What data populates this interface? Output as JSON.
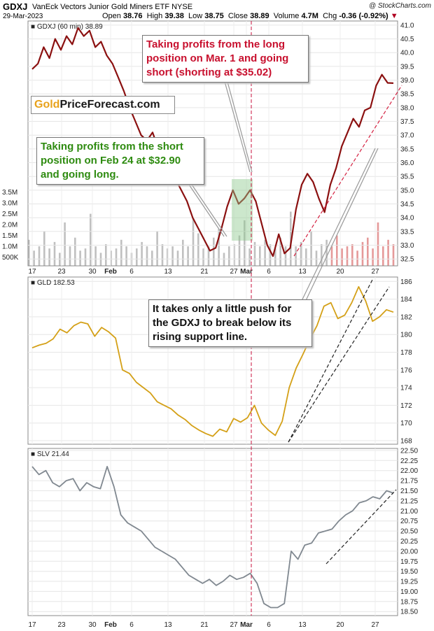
{
  "header": {
    "symbol": "GDXJ",
    "name": "VanEck Vectors Junior Gold Miners ETF",
    "exchange": "NYSE",
    "watermark": "@ StockCharts.com",
    "date": "29-Mar-2023",
    "open_label": "Open",
    "open": "38.76",
    "high_label": "High",
    "high": "39.38",
    "low_label": "Low",
    "low": "38.75",
    "close_label": "Close",
    "close": "38.89",
    "volume_label": "Volume",
    "volume": "4.7M",
    "chg_label": "Chg",
    "chg": "-0.36 (-0.92%)"
  },
  "logo": {
    "gold": "Gold",
    "rest": "PriceForecast.com"
  },
  "annotations": {
    "long_exit": "Taking profits from the long position on Mar. 1 and going short (shorting at $35.02)",
    "short_exit": "Taking profits from the short position on Feb 24 at $32.90 and going long.",
    "push": "It takes only a little push for the GDXJ to break below its rising support line."
  },
  "chart_data": [
    {
      "type": "line",
      "legend": "GDXJ (60 min) 38.89",
      "ylim": [
        32.25,
        41.15
      ],
      "y_ticks": [
        "41.0",
        "40.5",
        "40.0",
        "39.5",
        "39.0",
        "38.5",
        "38.0",
        "37.5",
        "37.0",
        "36.5",
        "36.0",
        "35.5",
        "35.0",
        "34.5",
        "34.0",
        "33.5",
        "33.0",
        "32.5"
      ],
      "volume_ticks": [
        "3.5M",
        "3.0M",
        "2.5M",
        "2.0M",
        "1.5M",
        "1.0M",
        "500K"
      ],
      "x_ticks": [
        "17",
        "23",
        "30",
        "Feb",
        "6",
        "13",
        "21",
        "27",
        "Mar",
        "6",
        "13",
        "20",
        "27"
      ],
      "series": [
        {
          "values": [
            39.4,
            39.6,
            40.2,
            39.8,
            40.5,
            40.1,
            40.6,
            40.3,
            40.9,
            40.6,
            40.8,
            40.2,
            40.4,
            39.9,
            39.6,
            39.1,
            38.6,
            38.0,
            37.5,
            37.0,
            36.8,
            37.1,
            36.5,
            36.2,
            35.8,
            35.4,
            35.0,
            34.6,
            34.0,
            33.6,
            33.2,
            32.8,
            32.9,
            33.6,
            34.4,
            35.0,
            34.5,
            34.7,
            35.0,
            34.6,
            33.8,
            33.0,
            32.6,
            33.4,
            32.7,
            32.9,
            34.3,
            35.2,
            35.6,
            35.3,
            34.7,
            34.2,
            35.2,
            35.8,
            36.6,
            37.1,
            37.6,
            37.3,
            37.9,
            38.0,
            38.8,
            39.2,
            38.9,
            38.89
          ]
        }
      ]
    },
    {
      "type": "line",
      "legend": "GLD 182.53",
      "ylim": [
        167.6,
        186.5
      ],
      "y_ticks": [
        "186",
        "184",
        "182",
        "180",
        "178",
        "176",
        "174",
        "172",
        "170",
        "168"
      ],
      "series": [
        {
          "values": [
            178.5,
            178.8,
            179.0,
            179.5,
            180.6,
            180.2,
            181.0,
            181.4,
            181.2,
            179.8,
            180.8,
            180.3,
            179.6,
            176.0,
            175.6,
            174.6,
            174.0,
            173.4,
            172.4,
            172.0,
            171.6,
            170.9,
            170.4,
            169.7,
            169.2,
            168.8,
            168.5,
            169.3,
            169.0,
            170.5,
            170.1,
            170.6,
            172.0,
            170.0,
            169.2,
            168.6,
            170.2,
            174.0,
            176.2,
            177.8,
            179.5,
            181.0,
            183.2,
            183.6,
            181.8,
            182.2,
            183.6,
            185.4,
            183.8,
            181.5,
            182.0,
            182.8,
            182.53
          ]
        }
      ]
    },
    {
      "type": "line",
      "legend": "SLV 21.44",
      "ylim": [
        18.4,
        22.55
      ],
      "y_ticks": [
        "22.50",
        "22.25",
        "22.00",
        "21.75",
        "21.50",
        "21.25",
        "21.00",
        "20.75",
        "20.50",
        "20.25",
        "20.00",
        "19.75",
        "19.50",
        "19.25",
        "19.00",
        "18.75",
        "18.50"
      ],
      "series": [
        {
          "values": [
            22.1,
            21.9,
            22.0,
            21.7,
            21.6,
            21.75,
            21.8,
            21.5,
            21.7,
            21.6,
            21.55,
            22.1,
            21.6,
            20.9,
            20.7,
            20.6,
            20.5,
            20.3,
            20.1,
            20.0,
            19.9,
            19.8,
            19.6,
            19.4,
            19.3,
            19.2,
            19.3,
            19.15,
            19.25,
            19.4,
            19.3,
            19.35,
            19.45,
            19.2,
            18.7,
            18.6,
            18.6,
            18.7,
            20.0,
            19.8,
            20.15,
            20.2,
            20.45,
            20.5,
            20.55,
            20.75,
            20.9,
            21.0,
            21.2,
            21.25,
            21.35,
            21.3,
            21.5,
            21.44
          ]
        }
      ]
    }
  ]
}
